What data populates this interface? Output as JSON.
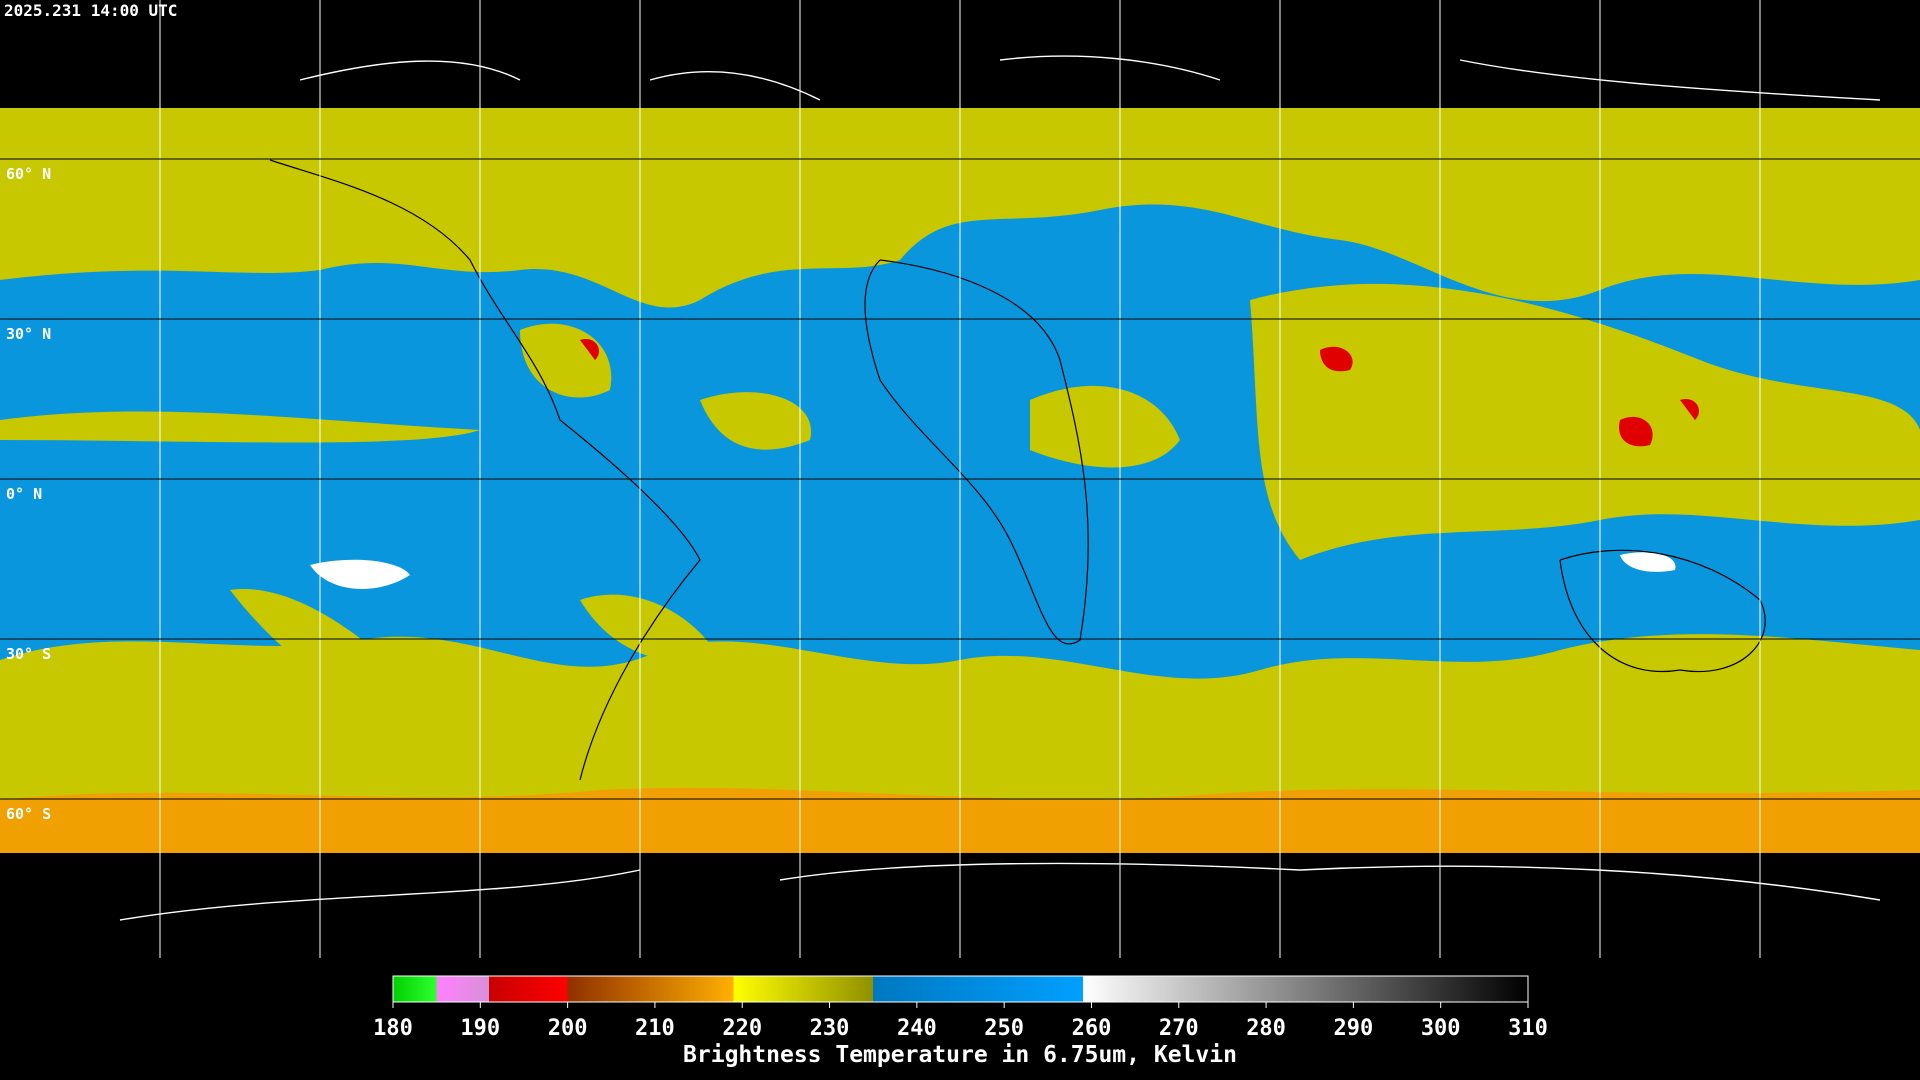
{
  "header": {
    "timestamp": "2025.231 14:00 UTC"
  },
  "grid": {
    "latitude_labels": [
      "60° N",
      "30° N",
      "0° N",
      "30° S",
      "60° S"
    ]
  },
  "colorbar": {
    "ticks": [
      180,
      190,
      200,
      210,
      220,
      230,
      240,
      250,
      260,
      270,
      280,
      290,
      300,
      310
    ],
    "title": "Brightness Temperature in 6.75um, Kelvin"
  }
}
